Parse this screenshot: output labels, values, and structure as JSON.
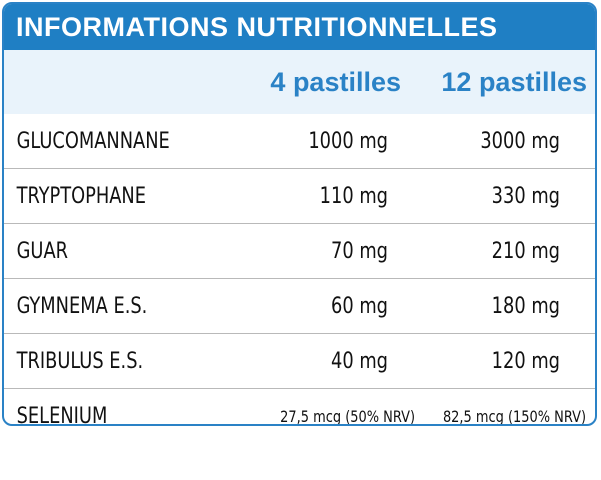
{
  "title": "INFORMATIONS NUTRITIONNELLES",
  "columns": [
    "4 pastilles",
    "12 pastilles"
  ],
  "rows": [
    {
      "name": "GLUCOMANNANE",
      "v1": "1000 mg",
      "v2": "3000 mg"
    },
    {
      "name": "TRYPTOPHANE",
      "v1": "110 mg",
      "v2": "330 mg"
    },
    {
      "name": "GUAR",
      "v1": "70 mg",
      "v2": "210 mg"
    },
    {
      "name": "GYMNEMA E.S.",
      "v1": "60 mg",
      "v2": "180 mg"
    },
    {
      "name": "TRIBULUS E.S.",
      "v1": "40 mg",
      "v2": "120 mg"
    },
    {
      "name": "SELENIUM",
      "v1": "27,5 mcg (50% NRV)",
      "v2": "82,5 mcg (150% NRV)"
    }
  ],
  "colors": {
    "accent": "#1f7fc4",
    "header_bg": "#e9f3fb",
    "text": "#111111"
  }
}
